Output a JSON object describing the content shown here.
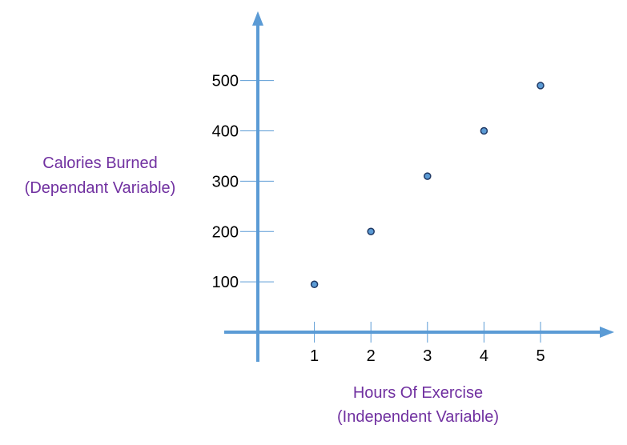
{
  "chart_data": {
    "type": "scatter",
    "xlabel": [
      "Hours Of Exercise",
      "(Independent Variable)"
    ],
    "ylabel": [
      "Calories Burned",
      "(Dependant Variable)"
    ],
    "x_ticks": [
      1,
      2,
      3,
      4,
      5
    ],
    "y_ticks": [
      100,
      200,
      300,
      400,
      500
    ],
    "points": [
      {
        "x": 1,
        "y": 95
      },
      {
        "x": 2,
        "y": 200
      },
      {
        "x": 3,
        "y": 310
      },
      {
        "x": 4,
        "y": 400
      },
      {
        "x": 5,
        "y": 490
      }
    ],
    "xlim": [
      0,
      6
    ],
    "ylim": [
      0,
      600
    ],
    "grid": false,
    "legend": "none"
  },
  "colors": {
    "axis": "#5b9bd5",
    "point_fill": "#5b9bd5",
    "point_stroke": "#1f3864",
    "title": "#7030a0",
    "tick_text": "#000000"
  }
}
